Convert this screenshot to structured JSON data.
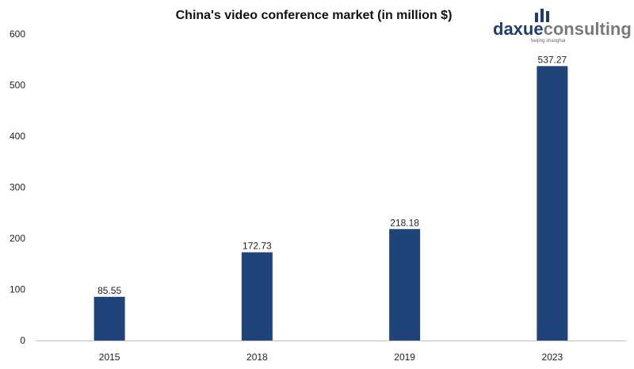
{
  "logo": {
    "brand_part1": "daxue",
    "brand_part2": "consulting",
    "subline": "beijing shanghai",
    "color_part1": "#1f3e6e",
    "color_part2": "#7a7a7a"
  },
  "colors": {
    "bar": "#1f4479",
    "axis": "#bfbfbf"
  },
  "chart_data": {
    "type": "bar",
    "title": "China's video conference market (in million $)",
    "xlabel": "",
    "ylabel": "",
    "categories": [
      "2015",
      "2018",
      "2019",
      "2023"
    ],
    "values": [
      85.55,
      172.73,
      218.18,
      537.27
    ],
    "data_labels": [
      "85.55",
      "172.73",
      "218.18",
      "537.27"
    ],
    "ylim": [
      0,
      600
    ],
    "yticks": [
      0,
      100,
      200,
      300,
      400,
      500,
      600
    ],
    "grid": false,
    "legend": "none"
  }
}
